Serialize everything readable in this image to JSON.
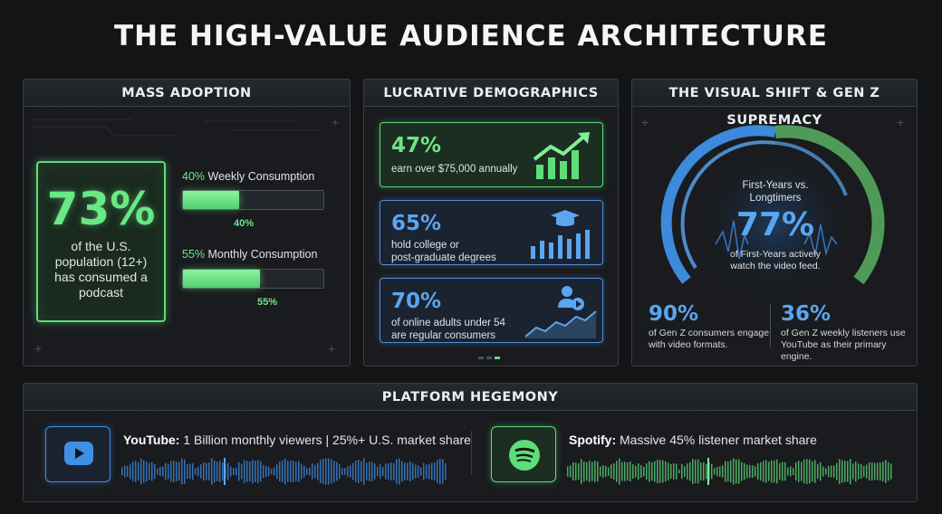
{
  "title": "THE HIGH-VALUE AUDIENCE ARCHITECTURE",
  "mass_adoption": {
    "heading": "MASS ADOPTION",
    "big_pct": "73%",
    "big_desc": "of the U.S. population (12+) has consumed a podcast",
    "bars": [
      {
        "pct_label": "40%",
        "label": " Weekly Consumption",
        "value": 40,
        "value_label": "40%"
      },
      {
        "pct_label": "55%",
        "label": " Monthly Consumption",
        "value": 55,
        "value_label": "55%"
      }
    ],
    "accent": "#5fdc7a"
  },
  "demographics": {
    "heading": "LUCRATIVE DEMOGRAPHICS",
    "cards": [
      {
        "pct": "47%",
        "desc": "earn over $75,000 annually",
        "icon": "trending-up-icon",
        "color": "#5fdc7a"
      },
      {
        "pct": "65%",
        "desc_lines": [
          "hold college or",
          "post-graduate degrees"
        ],
        "icon": "graduation-cap-icon",
        "color": "#4f8fd6"
      },
      {
        "pct": "70%",
        "desc_lines": [
          "of online adults under 54",
          "are regular consumers"
        ],
        "icon": "user-play-icon",
        "color": "#4f8fd6"
      }
    ]
  },
  "visual_shift": {
    "heading": "THE VISUAL SHIFT & GEN Z SUPREMACY",
    "center_label_lines": [
      "First-Years vs.",
      "Longtimers"
    ],
    "center_pct": "77%",
    "center_desc_lines": [
      "of First-Years actively",
      "watch the video feed."
    ],
    "stats": [
      {
        "pct": "90%",
        "desc_lines": [
          "of Gen Z consumers engage",
          "with video formats."
        ]
      },
      {
        "pct": "36%",
        "desc_lines": [
          "of Gen Z weekly listeners use",
          "YouTube as their primary engine."
        ]
      }
    ],
    "ring_colors": {
      "blue": "#3f8fe6",
      "green": "#4f9a58"
    }
  },
  "platform": {
    "heading": "PLATFORM HEGEMONY",
    "youtube": {
      "name": "YouTube:",
      "desc": " 1 Billion monthly viewers | 25%+ U.S. market share",
      "icon": "youtube-icon",
      "color": "#3f8fe6"
    },
    "spotify": {
      "name": "Spotify:",
      "desc": " Massive 45% listener market share",
      "icon": "spotify-icon",
      "color": "#5fdc7a"
    }
  }
}
